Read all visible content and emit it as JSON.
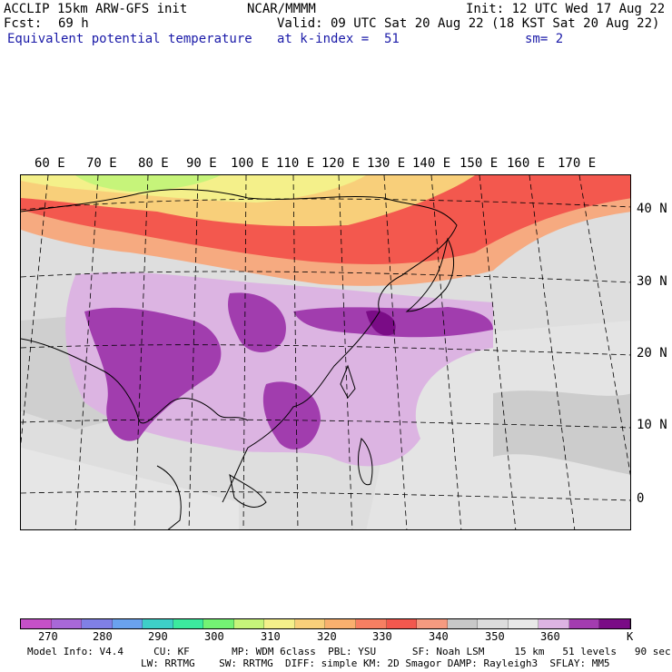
{
  "header": {
    "title": "ACCLIP 15km ARW-GFS init",
    "center": "NCAR/MMMM",
    "init": "Init: 12 UTC Wed 17 Aug 22",
    "fcst_label": "Fcst:",
    "fcst_value": "69 h",
    "valid": "Valid: 09 UTC Sat 20 Aug 22 (18 KST Sat 20 Aug 22)",
    "field": "Equivalent potential temperature",
    "level": "at k-index =  51",
    "smoothing": "sm= 2"
  },
  "map": {
    "lon_labels": [
      "60 E",
      "70 E",
      "80 E",
      "90 E",
      "100 E",
      "110 E",
      "120 E",
      "130 E",
      "140 E",
      "150 E",
      "160 E",
      "170 E"
    ],
    "lat_labels": [
      "40 N",
      "30 N",
      "20 N",
      "10 N",
      "0"
    ]
  },
  "colorbar": {
    "colors": [
      "#c550c8",
      "#a868d8",
      "#8080e6",
      "#6aa2ee",
      "#3ecfc8",
      "#3cea9e",
      "#74f274",
      "#c6f47a",
      "#f4f08a",
      "#f8cf7a",
      "#f9b06e",
      "#f77f62",
      "#f3584e",
      "#f59a80",
      "#c8c8c8",
      "#dcdcdc",
      "#e8e8e8",
      "#ddb4e3",
      "#a33cb0",
      "#7a0c86"
    ],
    "tick_labels": [
      "270",
      "280",
      "290",
      "300",
      "310",
      "320",
      "330",
      "340",
      "350",
      "360"
    ],
    "unit": "K"
  },
  "footer": {
    "line1": "Model Info: V4.4     CU: KF       MP: WDM 6class  PBL: YSU      SF: Noah LSM     15 km   51 levels   90 sec",
    "line2": "LW: RRTMG    SW: RRTMG  DIFF: simple KM: 2D Smagor DAMP: Rayleigh3  SFLAY: MM5"
  }
}
